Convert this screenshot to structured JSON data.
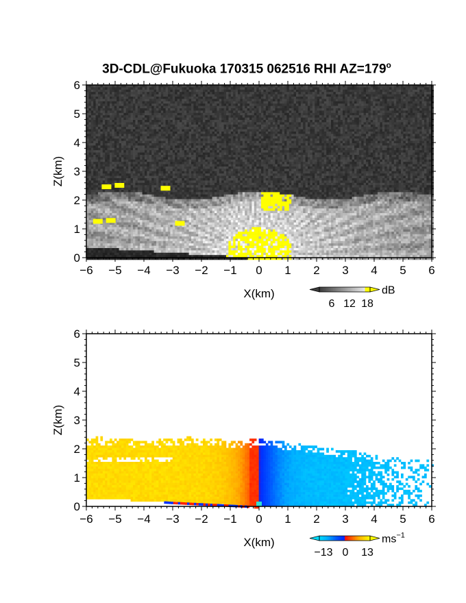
{
  "title": "3D-CDL@Fukuoka 170315 062516 RHI AZ=179",
  "title_sup": "o",
  "chart_data": [
    {
      "type": "heatmap",
      "quantity": "backscatter",
      "xlabel": "X(km)",
      "ylabel": "Z(km)",
      "xlim": [
        -6,
        6
      ],
      "ylim": [
        0,
        6
      ],
      "xticks": [
        "-6",
        "-5",
        "-4",
        "-3",
        "-2",
        "-1",
        "0",
        "1",
        "2",
        "3",
        "4",
        "5",
        "6"
      ],
      "yticks": [
        "0",
        "1",
        "2",
        "3",
        "4",
        "5",
        "6"
      ],
      "colorbar": {
        "unit": "dB",
        "ticks": [
          "6",
          "12",
          "18"
        ],
        "range": [
          0,
          20
        ]
      },
      "colors": {
        "background": "#2e2e2e",
        "high": "#ffff00"
      }
    },
    {
      "type": "heatmap",
      "quantity": "radial velocity",
      "xlabel": "X(km)",
      "ylabel": "Z(km)",
      "xlim": [
        -6,
        6
      ],
      "ylim": [
        0,
        6
      ],
      "xticks": [
        "-6",
        "-5",
        "-4",
        "-3",
        "-2",
        "-1",
        "0",
        "1",
        "2",
        "3",
        "4",
        "5",
        "6"
      ],
      "yticks": [
        "0",
        "1",
        "2",
        "3",
        "4",
        "5",
        "6"
      ],
      "colorbar": {
        "unit": "ms",
        "unit_sup": "−1",
        "ticks": [
          "−13",
          "0",
          "13"
        ],
        "range": [
          -15,
          15
        ]
      },
      "colors": {
        "negative_far": "#00d8ff",
        "negative_near": "#0030ff",
        "zero": "#ff0000",
        "positive_far": "#ffff00"
      }
    }
  ]
}
